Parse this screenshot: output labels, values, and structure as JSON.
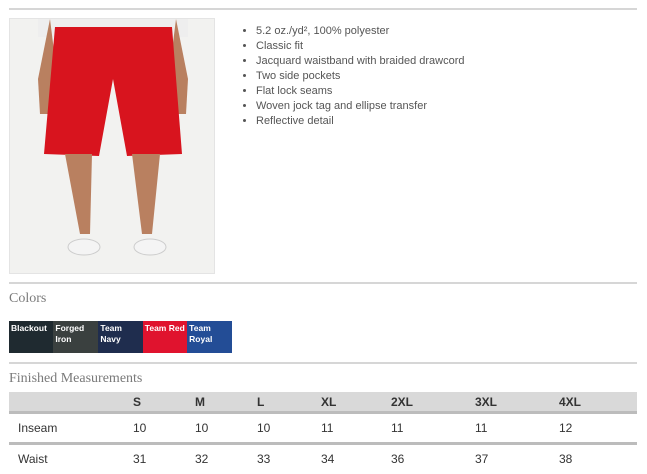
{
  "product": {
    "image_alt": "Red shorts worn by model",
    "features": [
      "5.2 oz./yd², 100% polyester",
      "Classic fit",
      "Jacquard waistband with braided drawcord",
      "Two side pockets",
      "Flat lock seams",
      "Woven jock tag and ellipse transfer",
      "Reflective detail"
    ]
  },
  "colors": {
    "title": "Colors",
    "swatches": [
      {
        "name": "Blackout",
        "hex": "#1f2a30"
      },
      {
        "name": "Forged Iron",
        "hex": "#3a403f"
      },
      {
        "name": "Team Navy",
        "hex": "#1f2d4e"
      },
      {
        "name": "Team Red",
        "hex": "#e0132e"
      },
      {
        "name": "Team Royal",
        "hex": "#234d96"
      }
    ]
  },
  "measurements": {
    "title": "Finished Measurements",
    "headers": [
      "",
      "S",
      "M",
      "L",
      "XL",
      "2XL",
      "3XL",
      "4XL"
    ],
    "rows": [
      [
        "Inseam",
        "10",
        "10",
        "10",
        "11",
        "11",
        "11",
        "12"
      ],
      [
        "Waist",
        "31",
        "32",
        "33",
        "34",
        "36",
        "37",
        "38"
      ]
    ]
  }
}
